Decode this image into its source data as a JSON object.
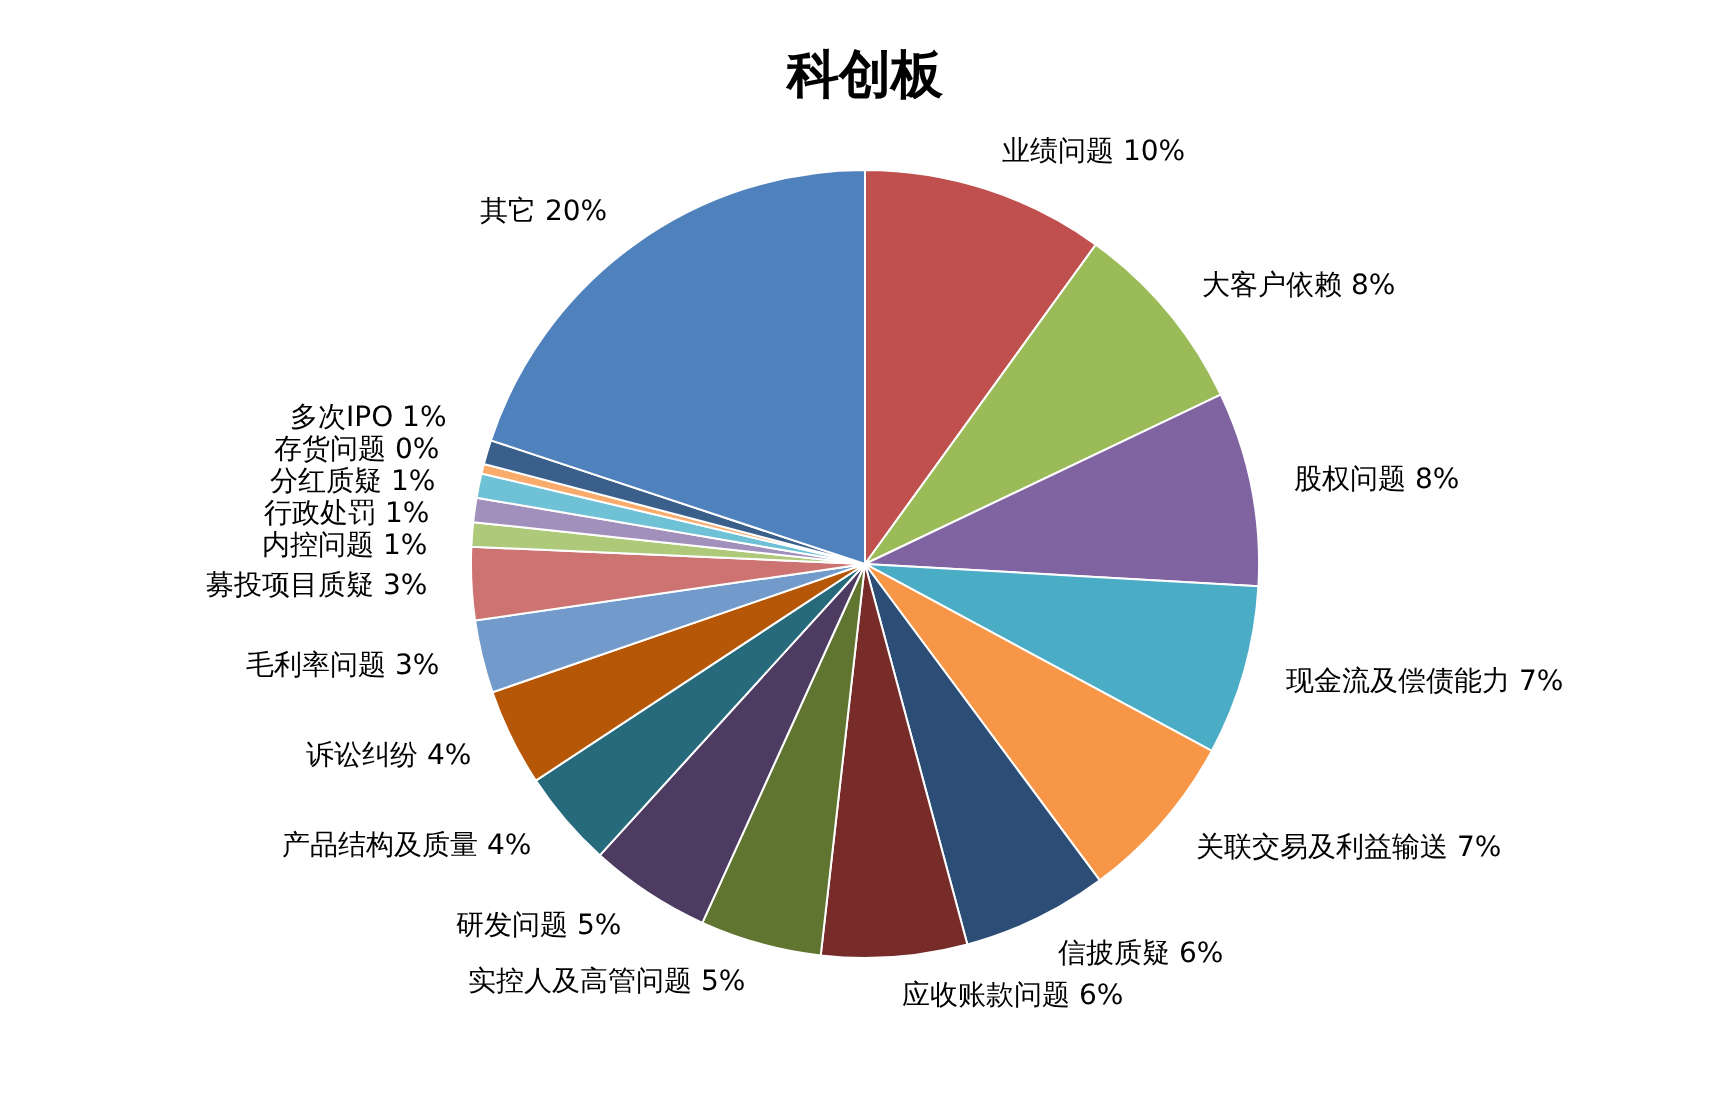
{
  "chart_data": {
    "type": "pie",
    "title": "科创板",
    "categories": [
      "业绩问题",
      "大客户依赖",
      "股权问题",
      "现金流及偿债能力",
      "关联交易及利益输送",
      "信披质疑",
      "应收账款问题",
      "实控人及高管问题",
      "研发问题",
      "产品结构及质量",
      "诉讼纠纷",
      "毛利率问题",
      "募投项目质疑",
      "内控问题",
      "行政处罚",
      "分红质疑",
      "存货问题",
      "多次IPO",
      "其它"
    ],
    "values": [
      10,
      8,
      8,
      7,
      7,
      6,
      6,
      5,
      5,
      4,
      4,
      3,
      3,
      1,
      1,
      1,
      0.4,
      1,
      20
    ],
    "value_labels": [
      "10%",
      "8%",
      "8%",
      "7%",
      "7%",
      "6%",
      "6%",
      "5%",
      "5%",
      "4%",
      "4%",
      "3%",
      "3%",
      "1%",
      "1%",
      "1%",
      "0%",
      "1%",
      "20%"
    ],
    "colors": [
      "#c0504d",
      "#9bbb59",
      "#8064a2",
      "#4bacc6",
      "#f79646",
      "#2c4d75",
      "#772c2a",
      "#5f7530",
      "#4d3b62",
      "#276a7c",
      "#b65708",
      "#729aca",
      "#cd7371",
      "#afc97a",
      "#a18fbc",
      "#6fc1d6",
      "#f9ab6b",
      "#3a5f8b",
      "#4f81bd"
    ],
    "legend": false
  }
}
